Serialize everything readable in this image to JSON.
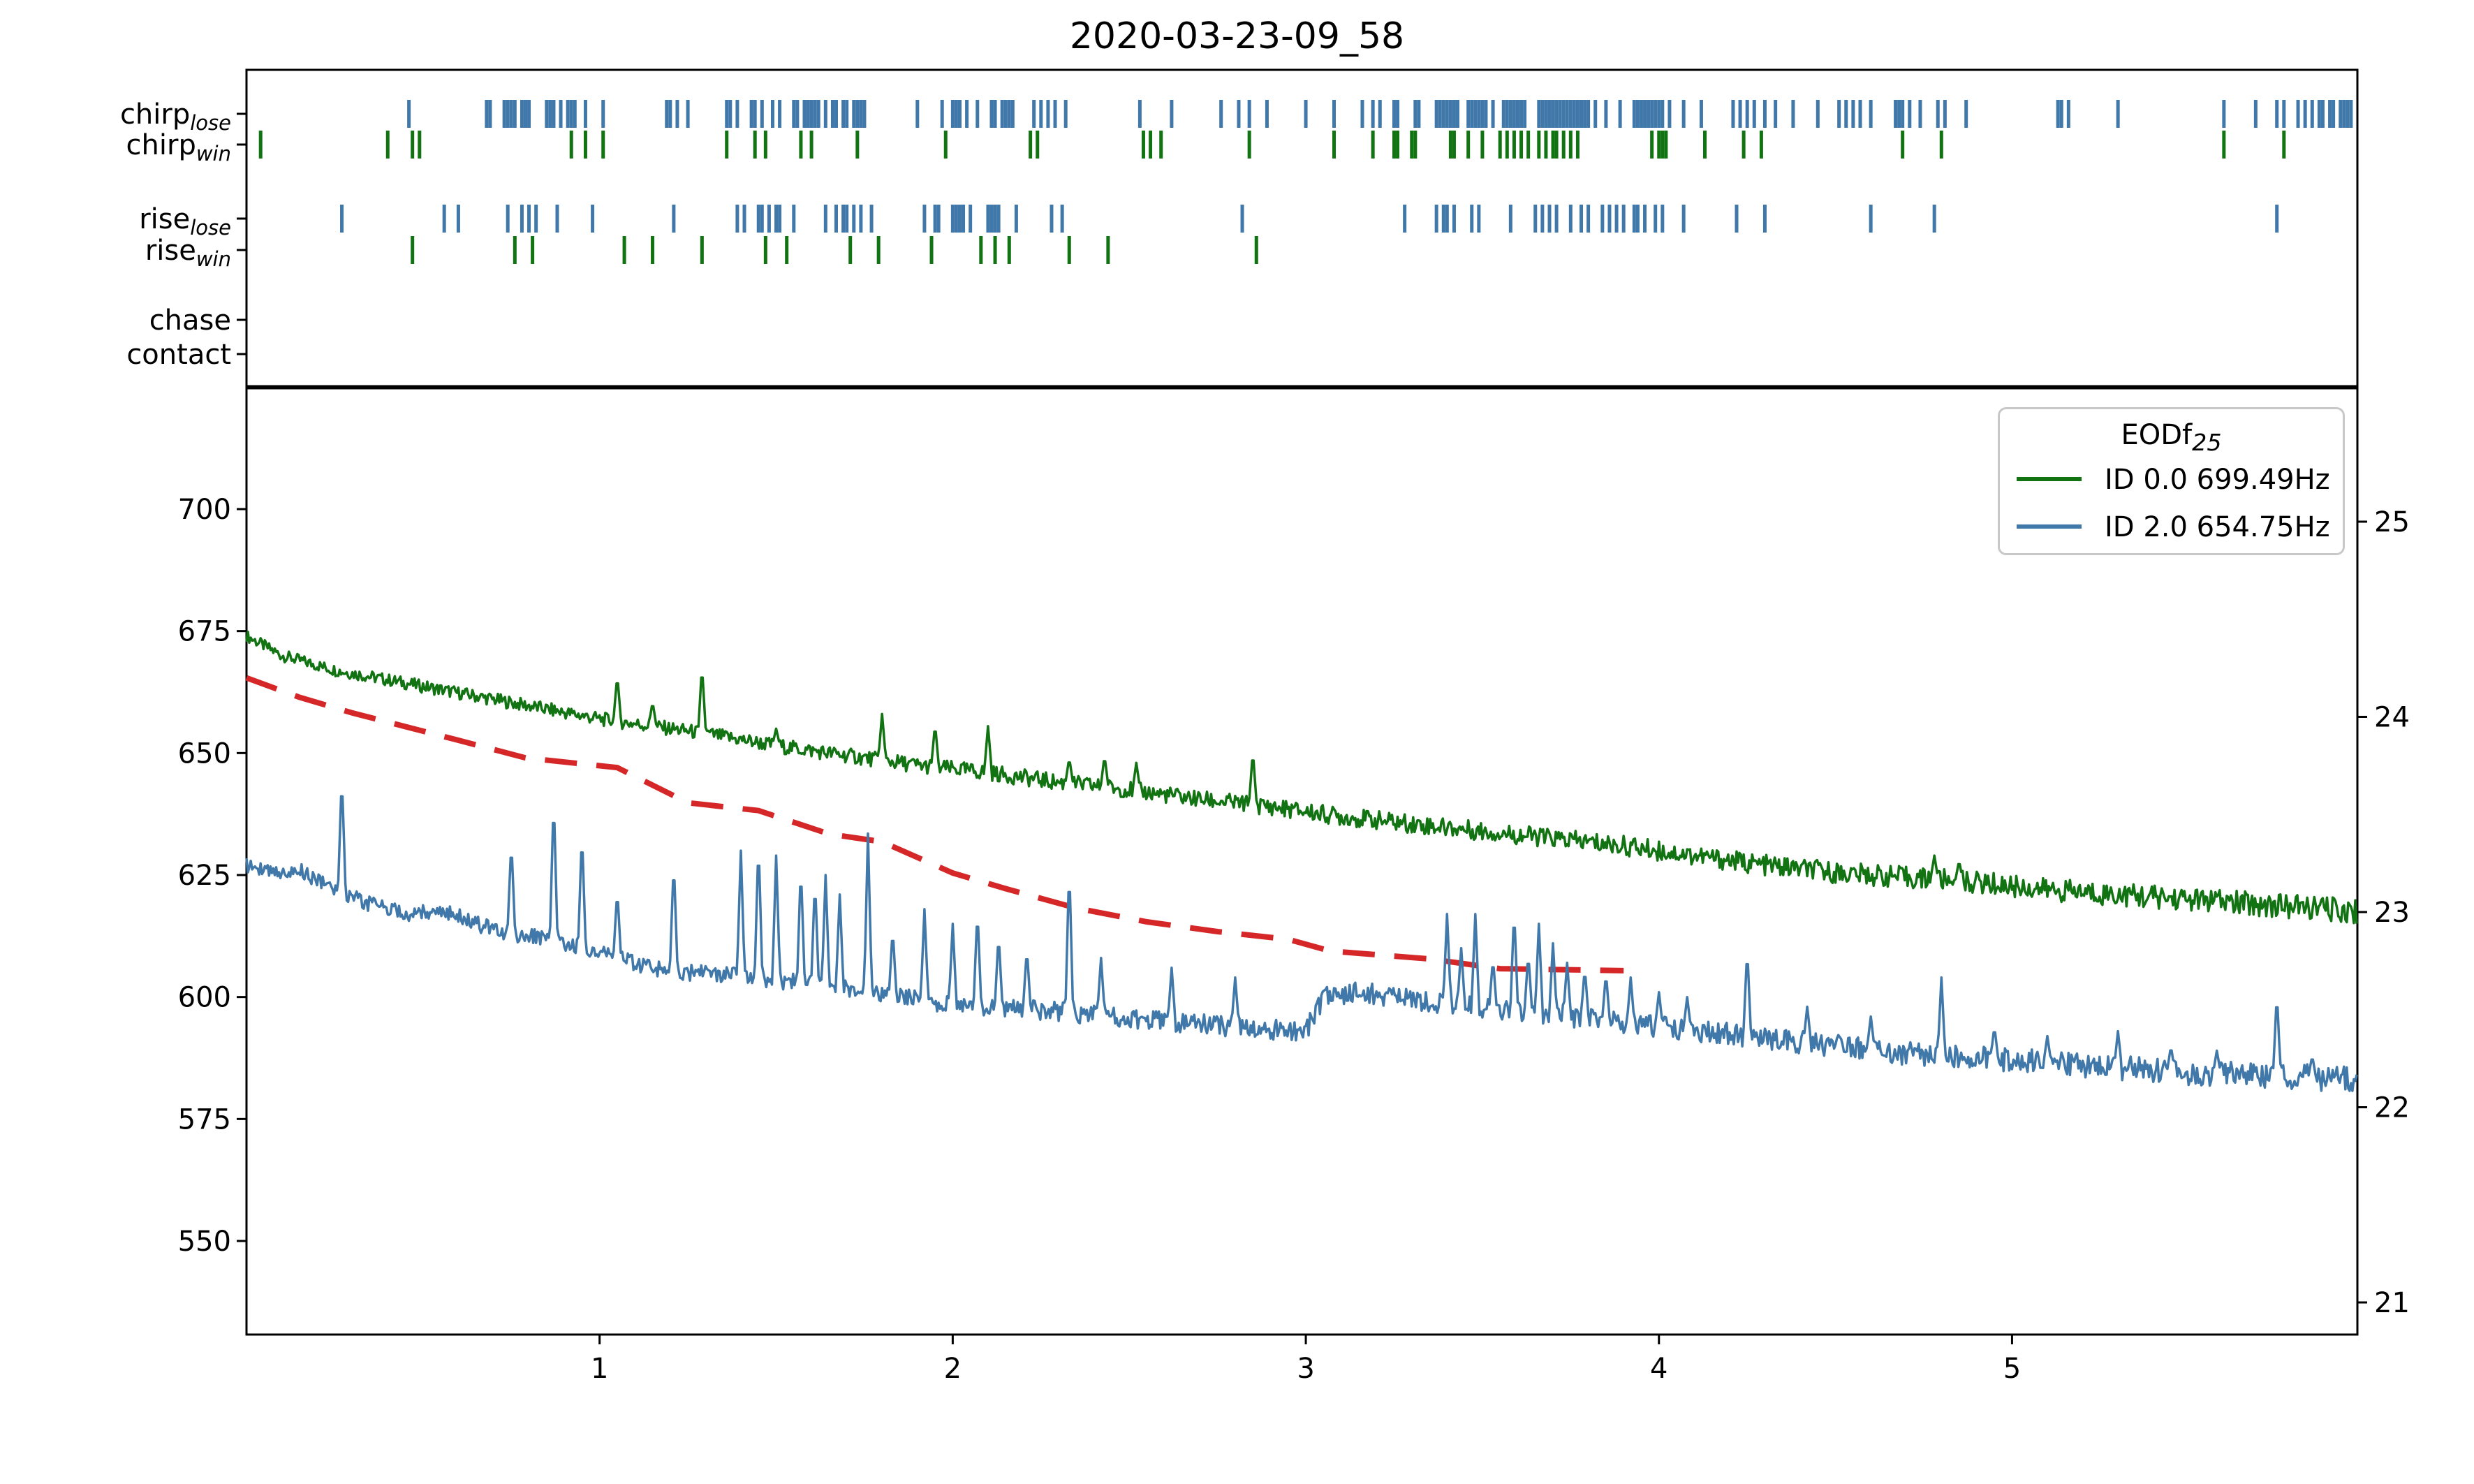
{
  "title": "2020-03-23-09_58",
  "colors": {
    "green": "#117311",
    "blue": "#4178aa",
    "red": "#d62728",
    "axis": "#000000",
    "legend_border": "#c8c8c8"
  },
  "legend": {
    "title_base": "EODf",
    "title_sub": "25",
    "entries": [
      {
        "label": "ID 0.0 699.49Hz",
        "color_key": "green"
      },
      {
        "label": "ID 2.0 654.75Hz",
        "color_key": "blue"
      }
    ]
  },
  "raster": {
    "rows": [
      {
        "id": "chirp_lose",
        "name": "chirp",
        "sub": "lose",
        "color_key": "blue",
        "events": [
          0.46,
          0.68,
          0.69,
          0.73,
          0.74,
          0.75,
          0.76,
          0.78,
          0.79,
          0.8,
          0.85,
          0.86,
          0.87,
          0.89,
          0.91,
          0.92,
          0.93,
          0.96,
          1.01,
          1.19,
          1.2,
          1.22,
          1.25,
          1.36,
          1.37,
          1.39,
          1.43,
          1.44,
          1.46,
          1.49,
          1.51,
          1.55,
          1.56,
          1.58,
          1.59,
          1.6,
          1.61,
          1.62,
          1.64,
          1.66,
          1.67,
          1.69,
          1.7,
          1.72,
          1.73,
          1.74,
          1.75,
          1.9,
          1.97,
          2.0,
          2.01,
          2.02,
          2.04,
          2.07,
          2.11,
          2.12,
          2.14,
          2.15,
          2.16,
          2.17,
          2.23,
          2.25,
          2.27,
          2.29,
          2.32,
          2.53,
          2.62,
          2.76,
          2.81,
          2.84,
          2.89,
          3.0,
          3.08,
          3.16,
          3.19,
          3.21,
          3.25,
          3.26,
          3.31,
          3.32,
          3.37,
          3.38,
          3.39,
          3.4,
          3.41,
          3.42,
          3.43,
          3.46,
          3.47,
          3.48,
          3.49,
          3.5,
          3.51,
          3.53,
          3.56,
          3.57,
          3.58,
          3.59,
          3.6,
          3.61,
          3.62,
          3.66,
          3.67,
          3.68,
          3.69,
          3.7,
          3.71,
          3.72,
          3.73,
          3.74,
          3.75,
          3.76,
          3.77,
          3.78,
          3.79,
          3.8,
          3.82,
          3.85,
          3.89,
          3.93,
          3.94,
          3.95,
          3.96,
          3.97,
          3.98,
          3.99,
          4.0,
          4.01,
          4.03,
          4.07,
          4.12,
          4.21,
          4.23,
          4.25,
          4.27,
          4.3,
          4.33,
          4.38,
          4.45,
          4.51,
          4.53,
          4.55,
          4.57,
          4.6,
          4.67,
          4.68,
          4.69,
          4.71,
          4.74,
          4.79,
          4.81,
          4.87,
          5.13,
          5.14,
          5.16,
          5.3,
          5.6,
          5.69,
          5.75,
          5.77,
          5.81,
          5.83,
          5.85,
          5.87,
          5.88,
          5.9,
          5.91,
          5.93,
          5.94,
          5.95,
          5.96
        ]
      },
      {
        "id": "chirp_win",
        "name": "chirp",
        "sub": "win",
        "color_key": "green",
        "events": [
          0.04,
          0.4,
          0.47,
          0.49,
          0.92,
          0.96,
          1.01,
          1.36,
          1.44,
          1.47,
          1.57,
          1.6,
          1.73,
          1.98,
          2.22,
          2.24,
          2.54,
          2.56,
          2.59,
          2.84,
          3.08,
          3.19,
          3.25,
          3.26,
          3.3,
          3.31,
          3.41,
          3.42,
          3.46,
          3.5,
          3.55,
          3.57,
          3.59,
          3.61,
          3.63,
          3.66,
          3.68,
          3.7,
          3.71,
          3.73,
          3.75,
          3.77,
          3.98,
          4.0,
          4.01,
          4.02,
          4.13,
          4.24,
          4.29,
          4.69,
          4.8,
          5.6,
          5.77
        ]
      },
      {
        "id": "rise_lose",
        "name": "rise",
        "sub": "lose",
        "color_key": "blue",
        "events": [
          0.27,
          0.56,
          0.6,
          0.74,
          0.78,
          0.8,
          0.82,
          0.88,
          0.98,
          1.21,
          1.39,
          1.41,
          1.45,
          1.46,
          1.48,
          1.5,
          1.51,
          1.55,
          1.64,
          1.67,
          1.69,
          1.7,
          1.72,
          1.74,
          1.77,
          1.92,
          1.95,
          1.96,
          2.0,
          2.01,
          2.02,
          2.03,
          2.05,
          2.1,
          2.11,
          2.12,
          2.13,
          2.18,
          2.28,
          2.31,
          2.82,
          3.28,
          3.37,
          3.39,
          3.4,
          3.42,
          3.47,
          3.49,
          3.58,
          3.65,
          3.67,
          3.69,
          3.71,
          3.75,
          3.78,
          3.8,
          3.84,
          3.86,
          3.88,
          3.9,
          3.93,
          3.94,
          3.96,
          3.99,
          4.01,
          4.07,
          4.22,
          4.3,
          4.6,
          4.78,
          5.75
        ]
      },
      {
        "id": "rise_win",
        "name": "rise",
        "sub": "win",
        "color_key": "green",
        "events": [
          0.47,
          0.76,
          0.81,
          1.07,
          1.15,
          1.29,
          1.47,
          1.53,
          1.71,
          1.79,
          1.94,
          2.08,
          2.12,
          2.16,
          2.33,
          2.44,
          2.86
        ]
      },
      {
        "id": "chase",
        "name": "chase",
        "sub": "",
        "color_key": "blue",
        "events": []
      },
      {
        "id": "contact",
        "name": "contact",
        "sub": "",
        "color_key": "blue",
        "events": []
      }
    ]
  },
  "chart_data": {
    "type": "line",
    "title": "2020-03-23-09_58",
    "x_axis": {
      "ticks": [
        1,
        2,
        3,
        4,
        5
      ],
      "range": [
        0,
        5.98
      ],
      "unit": "hours",
      "grid": false
    },
    "y_axis_left": {
      "ticks": [
        700,
        675,
        650,
        625,
        600,
        575,
        550
      ],
      "range": [
        531,
        725
      ],
      "unit": "Hz"
    },
    "y_axis_right": {
      "ticks": [
        25,
        24,
        23,
        22,
        21
      ],
      "range": [
        20.84,
        25.68
      ],
      "unit": "degC"
    },
    "legend_position": "upper right",
    "series": [
      {
        "name": "ID 0.0 699.49Hz",
        "id": "winner-frequency-trace",
        "axis": "left",
        "color_key": "green",
        "style": "solid",
        "baseline": [
          [
            0,
            674
          ],
          [
            0.1,
            670
          ],
          [
            0.25,
            667
          ],
          [
            0.4,
            665
          ],
          [
            0.55,
            663
          ],
          [
            0.7,
            661
          ],
          [
            0.85,
            659
          ],
          [
            1.0,
            657
          ],
          [
            1.15,
            655.5
          ],
          [
            1.3,
            654
          ],
          [
            1.5,
            651.5
          ],
          [
            1.7,
            649.5
          ],
          [
            1.9,
            647.5
          ],
          [
            2.1,
            646
          ],
          [
            2.3,
            644
          ],
          [
            2.5,
            642.5
          ],
          [
            2.7,
            640.5
          ],
          [
            2.9,
            639
          ],
          [
            3.1,
            637
          ],
          [
            3.3,
            635.5
          ],
          [
            3.5,
            634
          ],
          [
            3.7,
            632.5
          ],
          [
            3.9,
            631
          ],
          [
            4.1,
            629
          ],
          [
            4.3,
            627
          ],
          [
            4.5,
            625.5
          ],
          [
            4.7,
            624.5
          ],
          [
            4.9,
            623.5
          ],
          [
            5.1,
            622
          ],
          [
            5.3,
            621
          ],
          [
            5.5,
            620
          ],
          [
            5.7,
            619
          ],
          [
            5.85,
            618.3
          ],
          [
            5.98,
            617.5
          ]
        ],
        "spikes": [
          [
            1.05,
            666
          ],
          [
            1.15,
            660.5
          ],
          [
            1.29,
            668
          ],
          [
            1.5,
            655
          ],
          [
            1.8,
            658
          ],
          [
            1.95,
            656
          ],
          [
            2.1,
            655.5
          ],
          [
            2.33,
            649
          ],
          [
            2.43,
            649.5
          ],
          [
            2.52,
            648
          ],
          [
            2.85,
            650.5
          ],
          [
            4.78,
            629
          ],
          [
            4.85,
            628
          ]
        ]
      },
      {
        "name": "ID 2.0 654.75Hz",
        "id": "loser-frequency-trace",
        "axis": "left",
        "color_key": "blue",
        "style": "solid",
        "baseline": [
          [
            0,
            627
          ],
          [
            0.08,
            625.5
          ],
          [
            0.15,
            626
          ],
          [
            0.25,
            622
          ],
          [
            0.35,
            619
          ],
          [
            0.45,
            617
          ],
          [
            0.55,
            618
          ],
          [
            0.65,
            615
          ],
          [
            0.75,
            613
          ],
          [
            0.85,
            612
          ],
          [
            0.95,
            610
          ],
          [
            1.05,
            608
          ],
          [
            1.15,
            606
          ],
          [
            1.25,
            605
          ],
          [
            1.35,
            604.5
          ],
          [
            1.45,
            604
          ],
          [
            1.55,
            603
          ],
          [
            1.65,
            602
          ],
          [
            1.75,
            601
          ],
          [
            1.85,
            600
          ],
          [
            1.95,
            599
          ],
          [
            2.1,
            598
          ],
          [
            2.3,
            597
          ],
          [
            2.5,
            595.5
          ],
          [
            2.7,
            594.5
          ],
          [
            2.85,
            593.5
          ],
          [
            3.0,
            593
          ],
          [
            3.05,
            600
          ],
          [
            3.15,
            601
          ],
          [
            3.3,
            599.5
          ],
          [
            3.45,
            598
          ],
          [
            3.6,
            597
          ],
          [
            3.75,
            596
          ],
          [
            3.9,
            594.5
          ],
          [
            4.05,
            593.5
          ],
          [
            4.2,
            592.5
          ],
          [
            4.35,
            591
          ],
          [
            4.5,
            590
          ],
          [
            4.7,
            588.5
          ],
          [
            4.9,
            587.5
          ],
          [
            5.1,
            586.5
          ],
          [
            5.3,
            585.5
          ],
          [
            5.5,
            584.5
          ],
          [
            5.7,
            584
          ],
          [
            5.85,
            583.5
          ],
          [
            5.98,
            583
          ]
        ],
        "spikes": [
          [
            0.27,
            645.5
          ],
          [
            0.75,
            632
          ],
          [
            0.87,
            641
          ],
          [
            0.95,
            634
          ],
          [
            1.05,
            622
          ],
          [
            1.21,
            628
          ],
          [
            1.4,
            630
          ],
          [
            1.45,
            632
          ],
          [
            1.5,
            629
          ],
          [
            1.57,
            627
          ],
          [
            1.61,
            624
          ],
          [
            1.64,
            625
          ],
          [
            1.68,
            621
          ],
          [
            1.76,
            633.5
          ],
          [
            1.83,
            614
          ],
          [
            1.92,
            618
          ],
          [
            2.0,
            615
          ],
          [
            2.07,
            618
          ],
          [
            2.13,
            613
          ],
          [
            2.21,
            610
          ],
          [
            2.33,
            627
          ],
          [
            2.42,
            608
          ],
          [
            2.62,
            606
          ],
          [
            2.8,
            604
          ],
          [
            3.4,
            617
          ],
          [
            3.44,
            610
          ],
          [
            3.48,
            617
          ],
          [
            3.53,
            608
          ],
          [
            3.59,
            618
          ],
          [
            3.63,
            609
          ],
          [
            3.66,
            615
          ],
          [
            3.7,
            611
          ],
          [
            3.74,
            607
          ],
          [
            3.79,
            606
          ],
          [
            3.85,
            605
          ],
          [
            3.92,
            604
          ],
          [
            4.0,
            601
          ],
          [
            4.08,
            600
          ],
          [
            4.25,
            610
          ],
          [
            4.42,
            598
          ],
          [
            4.6,
            596
          ],
          [
            4.8,
            604
          ],
          [
            4.95,
            594
          ],
          [
            5.1,
            592
          ],
          [
            5.3,
            593
          ],
          [
            5.45,
            590
          ],
          [
            5.58,
            589
          ],
          [
            5.75,
            601
          ],
          [
            5.85,
            588
          ]
        ]
      },
      {
        "name": "temperature",
        "id": "temperature-trace",
        "axis": "right",
        "color_key": "red",
        "style": "dashed",
        "points": [
          [
            0,
            24.2
          ],
          [
            0.15,
            24.1
          ],
          [
            0.3,
            24.02
          ],
          [
            0.45,
            23.95
          ],
          [
            0.6,
            23.88
          ],
          [
            0.79,
            23.79
          ],
          [
            1.05,
            23.74
          ],
          [
            1.25,
            23.56
          ],
          [
            1.45,
            23.52
          ],
          [
            1.65,
            23.4
          ],
          [
            1.8,
            23.36
          ],
          [
            2.0,
            23.2
          ],
          [
            2.15,
            23.12
          ],
          [
            2.35,
            23.02
          ],
          [
            2.55,
            22.95
          ],
          [
            2.75,
            22.9
          ],
          [
            2.95,
            22.86
          ],
          [
            3.07,
            22.8
          ],
          [
            3.35,
            22.76
          ],
          [
            3.55,
            22.71
          ],
          [
            3.9,
            22.7
          ]
        ]
      }
    ]
  }
}
